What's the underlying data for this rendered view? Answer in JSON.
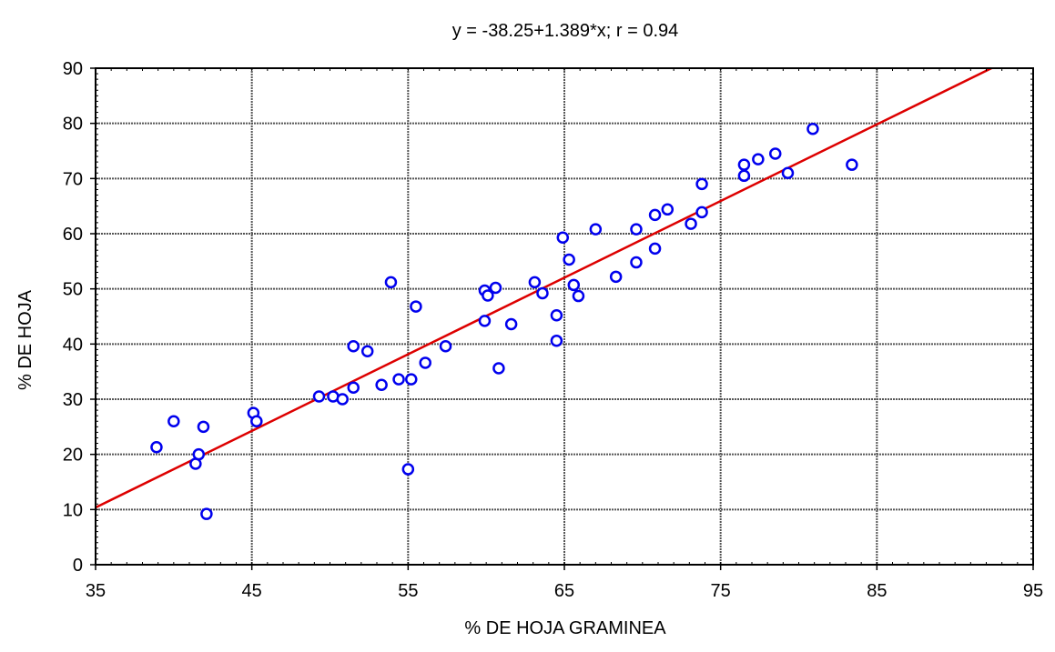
{
  "chart_data": {
    "type": "scatter",
    "title": "y = -38.25+1.389*x; r = 0.94",
    "xlabel": "% DE HOJA GRAMINEA",
    "ylabel": "% DE HOJA",
    "xlim": [
      35,
      95
    ],
    "ylim": [
      0,
      90
    ],
    "x_ticks": [
      35,
      45,
      55,
      65,
      75,
      85,
      95
    ],
    "y_ticks": [
      0,
      10,
      20,
      30,
      40,
      50,
      60,
      70,
      80,
      90
    ],
    "grid": true,
    "colors": {
      "points": "#0000ee",
      "fit_line": "#dd0000",
      "grid": "#555555"
    },
    "regression": {
      "intercept": -38.25,
      "slope": 1.389
    },
    "points": [
      [
        38.9,
        21.3
      ],
      [
        40.0,
        26.0
      ],
      [
        41.4,
        18.3
      ],
      [
        41.6,
        20.0
      ],
      [
        41.9,
        25.0
      ],
      [
        42.1,
        9.2
      ],
      [
        45.1,
        27.5
      ],
      [
        45.3,
        26.0
      ],
      [
        49.3,
        30.5
      ],
      [
        50.2,
        30.5
      ],
      [
        50.8,
        30.0
      ],
      [
        51.5,
        39.6
      ],
      [
        51.5,
        32.1
      ],
      [
        52.4,
        38.7
      ],
      [
        53.3,
        32.6
      ],
      [
        53.9,
        51.2
      ],
      [
        54.4,
        33.6
      ],
      [
        55.0,
        17.3
      ],
      [
        55.2,
        33.6
      ],
      [
        55.5,
        46.8
      ],
      [
        56.1,
        36.6
      ],
      [
        57.4,
        39.6
      ],
      [
        59.9,
        49.7
      ],
      [
        59.9,
        44.2
      ],
      [
        60.1,
        48.8
      ],
      [
        60.6,
        50.2
      ],
      [
        60.8,
        35.6
      ],
      [
        61.6,
        43.6
      ],
      [
        63.1,
        51.2
      ],
      [
        63.6,
        49.2
      ],
      [
        64.5,
        45.2
      ],
      [
        64.5,
        40.6
      ],
      [
        64.9,
        59.3
      ],
      [
        65.3,
        55.3
      ],
      [
        65.6,
        50.7
      ],
      [
        65.9,
        48.7
      ],
      [
        67.0,
        60.8
      ],
      [
        68.3,
        52.2
      ],
      [
        69.6,
        60.8
      ],
      [
        69.6,
        54.8
      ],
      [
        70.8,
        63.4
      ],
      [
        70.8,
        57.3
      ],
      [
        71.6,
        64.4
      ],
      [
        73.1,
        61.8
      ],
      [
        73.8,
        63.9
      ],
      [
        73.8,
        69.0
      ],
      [
        76.5,
        72.5
      ],
      [
        76.5,
        70.5
      ],
      [
        77.4,
        73.5
      ],
      [
        78.5,
        74.5
      ],
      [
        79.3,
        71.0
      ],
      [
        80.9,
        79.0
      ],
      [
        83.4,
        72.5
      ]
    ]
  }
}
